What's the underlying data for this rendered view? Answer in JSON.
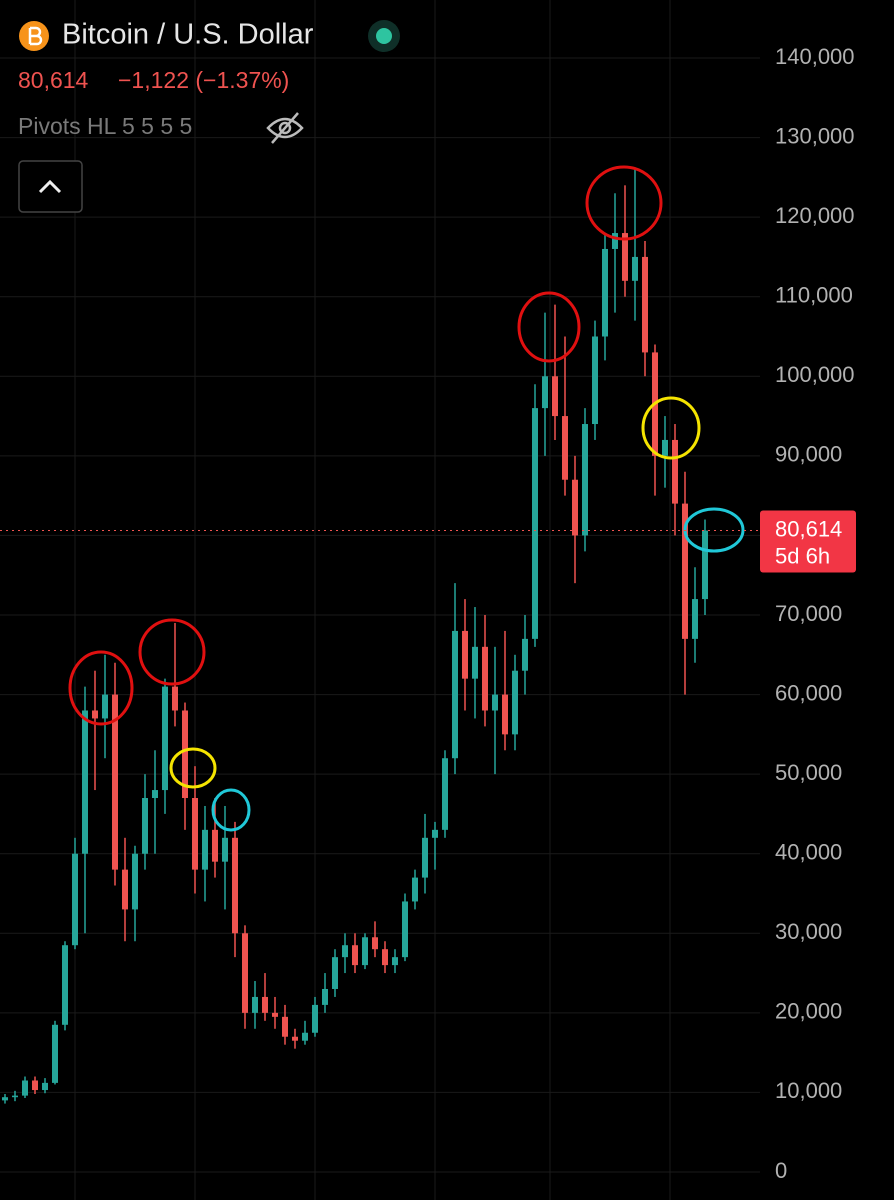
{
  "chart_data": {
    "type": "candlestick",
    "title": "Bitcoin / U.S. Dollar",
    "last_price": {
      "value": 80614,
      "label": "80,614"
    },
    "change": "−1,122 (−1.37%)",
    "indicator": "Pivots HL 5 5 5 5",
    "countdown": "5d 6h",
    "up_color": "#26a69a",
    "down_color": "#ef5350",
    "ylim": [
      0,
      140000
    ],
    "yticks": [
      0,
      {
        "value": 10000,
        "label": "10,000"
      },
      {
        "value": 20000,
        "label": "20,000"
      },
      {
        "value": 30000,
        "label": "30,000"
      },
      {
        "value": 40000,
        "label": "40,000"
      },
      {
        "value": 50000,
        "label": "50,000"
      },
      {
        "value": 60000,
        "label": "60,000"
      },
      {
        "value": 70000,
        "label": "70,000"
      },
      {
        "value": 80000,
        "label": "80,000"
      },
      {
        "value": 90000,
        "label": "90,000"
      },
      {
        "value": 100000,
        "label": "100,000"
      },
      {
        "value": 110000,
        "label": "110,000"
      },
      {
        "value": 120000,
        "label": "120,000"
      },
      {
        "value": 130000,
        "label": "130,000"
      },
      {
        "value": 140000,
        "label": "140,000"
      }
    ],
    "grid": true,
    "candles": [
      [
        9000,
        9800,
        8600,
        9400
      ],
      [
        9400,
        10200,
        8900,
        9600
      ],
      [
        9600,
        12000,
        9300,
        11500
      ],
      [
        11500,
        12000,
        9800,
        10300
      ],
      [
        10300,
        11800,
        9900,
        11200
      ],
      [
        11200,
        19000,
        11000,
        18500
      ],
      [
        18500,
        29000,
        17800,
        28500
      ],
      [
        28500,
        42000,
        28000,
        40000
      ],
      [
        40000,
        61000,
        30000,
        58000
      ],
      [
        58000,
        63000,
        48000,
        57000
      ],
      [
        57000,
        65000,
        52000,
        60000
      ],
      [
        60000,
        64000,
        36000,
        38000
      ],
      [
        38000,
        42000,
        29000,
        33000
      ],
      [
        33000,
        41000,
        29000,
        40000
      ],
      [
        40000,
        50000,
        38000,
        47000
      ],
      [
        47000,
        53000,
        40000,
        48000
      ],
      [
        48000,
        62000,
        45000,
        61000
      ],
      [
        61000,
        69000,
        56000,
        58000
      ],
      [
        58000,
        59000,
        43000,
        47000
      ],
      [
        47000,
        51000,
        35000,
        38000
      ],
      [
        38000,
        46000,
        34000,
        43000
      ],
      [
        43000,
        47000,
        37000,
        39000
      ],
      [
        39000,
        46000,
        33000,
        42000
      ],
      [
        42000,
        44000,
        27000,
        30000
      ],
      [
        30000,
        31000,
        18000,
        20000
      ],
      [
        20000,
        24000,
        18000,
        22000
      ],
      [
        22000,
        25000,
        19000,
        20000
      ],
      [
        20000,
        22000,
        18000,
        19500
      ],
      [
        19500,
        21000,
        16000,
        17000
      ],
      [
        17000,
        18000,
        15500,
        16500
      ],
      [
        16500,
        19000,
        16000,
        17500
      ],
      [
        17500,
        22000,
        17000,
        21000
      ],
      [
        21000,
        25000,
        20000,
        23000
      ],
      [
        23000,
        28000,
        22000,
        27000
      ],
      [
        27000,
        30000,
        25000,
        28500
      ],
      [
        28500,
        30000,
        25000,
        26000
      ],
      [
        26000,
        30000,
        25500,
        29500
      ],
      [
        29500,
        31500,
        27000,
        28000
      ],
      [
        28000,
        29000,
        25000,
        26000
      ],
      [
        26000,
        28000,
        25000,
        27000
      ],
      [
        27000,
        35000,
        26500,
        34000
      ],
      [
        34000,
        38000,
        33000,
        37000
      ],
      [
        37000,
        45000,
        35000,
        42000
      ],
      [
        42000,
        44000,
        38000,
        43000
      ],
      [
        43000,
        53000,
        42000,
        52000
      ],
      [
        52000,
        74000,
        50000,
        68000
      ],
      [
        68000,
        72000,
        58000,
        62000
      ],
      [
        62000,
        71000,
        57000,
        66000
      ],
      [
        66000,
        70000,
        56000,
        58000
      ],
      [
        58000,
        66000,
        50000,
        60000
      ],
      [
        60000,
        68000,
        53000,
        55000
      ],
      [
        55000,
        65000,
        53000,
        63000
      ],
      [
        63000,
        70000,
        60000,
        67000
      ],
      [
        67000,
        99000,
        66000,
        96000
      ],
      [
        96000,
        108000,
        90000,
        100000
      ],
      [
        100000,
        109000,
        92000,
        95000
      ],
      [
        95000,
        105000,
        85000,
        87000
      ],
      [
        87000,
        90000,
        74000,
        80000
      ],
      [
        80000,
        96000,
        78000,
        94000
      ],
      [
        94000,
        107000,
        92000,
        105000
      ],
      [
        105000,
        118000,
        102000,
        116000
      ],
      [
        116000,
        123000,
        108000,
        118000
      ],
      [
        118000,
        124000,
        110000,
        112000
      ],
      [
        112000,
        126000,
        107000,
        115000
      ],
      [
        115000,
        117000,
        100000,
        103000
      ],
      [
        103000,
        104000,
        85000,
        90000
      ],
      [
        90000,
        95000,
        86000,
        92000
      ],
      [
        92000,
        94000,
        80000,
        84000
      ],
      [
        84000,
        88000,
        60000,
        67000
      ],
      [
        67000,
        76000,
        64000,
        72000
      ],
      [
        72000,
        82000,
        70000,
        80614
      ]
    ]
  }
}
